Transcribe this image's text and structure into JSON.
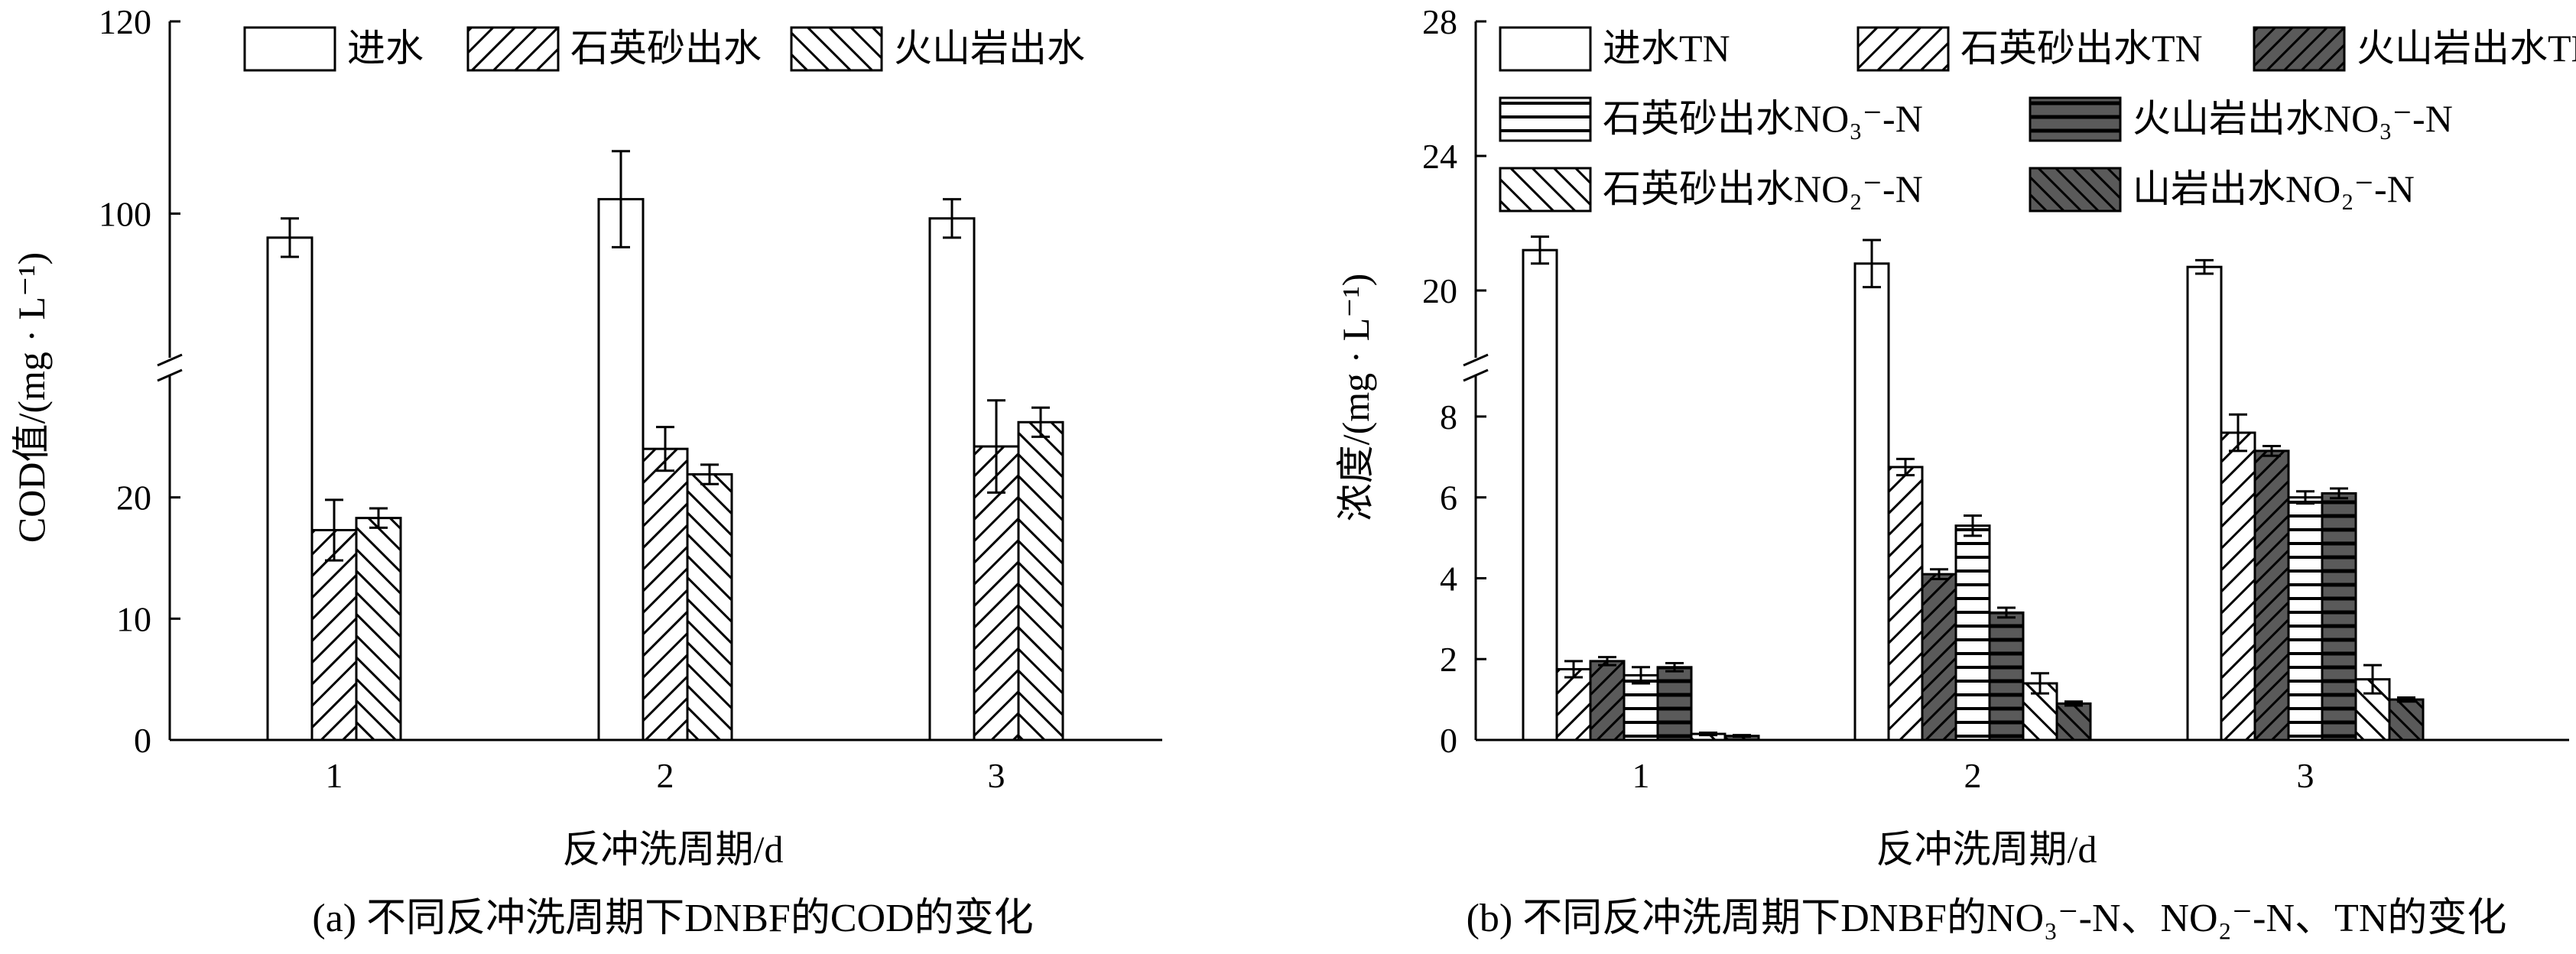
{
  "chart_data": [
    {
      "type": "bar",
      "caption": "(a) 不同反冲洗周期下DNBF的COD的变化",
      "xlabel": "反冲洗周期/d",
      "ylabel": "COD值/(mg · L⁻¹)",
      "categories": [
        "1",
        "2",
        "3"
      ],
      "axis_break": {
        "lower": [
          0,
          30
        ],
        "upper": [
          85,
          120
        ]
      },
      "yticks": [
        0,
        10,
        20,
        100,
        120
      ],
      "legend_position": "top",
      "series": [
        {
          "name": "进水",
          "fill": "white",
          "values": [
            97.5,
            101.5,
            99.5
          ],
          "errors": [
            2.0,
            5.0,
            2.0
          ]
        },
        {
          "name": "石英砂出水",
          "fill": "hatch-forward",
          "values": [
            17.3,
            24.0,
            24.2
          ],
          "errors": [
            2.5,
            1.8,
            3.8
          ]
        },
        {
          "name": "火山岩出水",
          "fill": "hatch-back",
          "values": [
            18.3,
            21.9,
            26.2
          ],
          "errors": [
            0.8,
            0.8,
            1.2
          ]
        }
      ]
    },
    {
      "type": "bar",
      "caption": "(b) 不同反冲洗周期下DNBF的NO₃⁻-N、NO₂⁻-N、TN的变化",
      "xlabel": "反冲洗周期/d",
      "ylabel": "浓度/(mg · L⁻¹)",
      "categories": [
        "1",
        "2",
        "3"
      ],
      "axis_break": {
        "lower": [
          0,
          9
        ],
        "upper": [
          18,
          28
        ]
      },
      "yticks": [
        0,
        2,
        4,
        6,
        8,
        20,
        24,
        28
      ],
      "legend_position": "top",
      "series": [
        {
          "name": "进水TN",
          "fill": "white",
          "values": [
            21.2,
            20.8,
            20.7
          ],
          "errors": [
            0.4,
            0.7,
            0.2
          ]
        },
        {
          "name": "石英砂出水TN",
          "fill": "hatch-forward",
          "values": [
            1.75,
            6.75,
            7.6
          ],
          "errors": [
            0.2,
            0.2,
            0.45
          ]
        },
        {
          "name": "火山岩出水TN",
          "fill": "dark-hatch-forward",
          "values": [
            1.95,
            4.1,
            7.15
          ],
          "errors": [
            0.1,
            0.12,
            0.12
          ]
        },
        {
          "name": "石英砂出水NO₃⁻-N",
          "fill": "hlines",
          "values": [
            1.6,
            5.3,
            6.0
          ],
          "errors": [
            0.2,
            0.25,
            0.15
          ]
        },
        {
          "name": "火山岩出水NO₃⁻-N",
          "fill": "dark-hlines",
          "values": [
            1.8,
            3.15,
            6.1
          ],
          "errors": [
            0.1,
            0.12,
            0.12
          ]
        },
        {
          "name": "石英砂出水NO₂⁻-N",
          "fill": "hatch-back",
          "values": [
            0.15,
            1.4,
            1.5
          ],
          "errors": [
            0.03,
            0.25,
            0.35
          ]
        },
        {
          "name": "山岩出水NO₂⁻-N",
          "fill": "dark-hatch-back",
          "values": [
            0.1,
            0.9,
            1.0
          ],
          "errors": [
            0.02,
            0.05,
            0.05
          ]
        }
      ]
    }
  ]
}
